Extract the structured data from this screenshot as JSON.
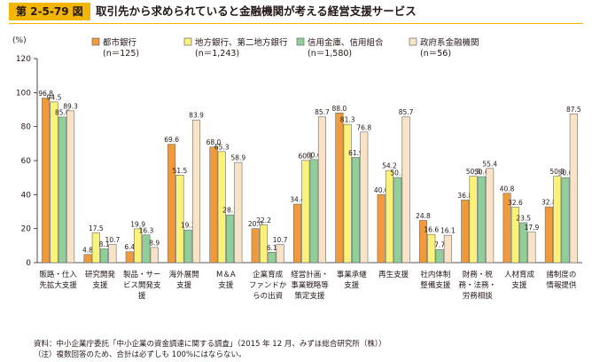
{
  "figure_label": "第 2-5-79 図",
  "figure_title": "取引先から求められていると金融機関が考える経営支援サービス",
  "colors": {
    "accent": "#f2b600",
    "series": [
      "#f09a3c",
      "#fbf27a",
      "#8fcf9a",
      "#f9e3c7"
    ]
  },
  "chart_data": {
    "type": "bar",
    "y_unit_label": "(%)",
    "ylim": [
      0,
      120
    ],
    "yticks": [
      0,
      20,
      40,
      60,
      80,
      100,
      120
    ],
    "grid": false,
    "legend_position": "top",
    "categories": [
      [
        "販路・仕入",
        "先拡大支援"
      ],
      [
        "研究開発",
        "支援"
      ],
      [
        "製品・サー",
        "ビス開発支",
        "援"
      ],
      [
        "海外展開",
        "支援"
      ],
      [
        "M＆A",
        "支援"
      ],
      [
        "企業育成",
        "ファンドか",
        "らの出資"
      ],
      [
        "経営計画・",
        "事業戦略等",
        "策定支援"
      ],
      [
        "事業承継",
        "支援"
      ],
      [
        "再生支援"
      ],
      [
        "社内体制",
        "整備支援"
      ],
      [
        "財務・税",
        "務・法務・",
        "労務相談"
      ],
      [
        "人材育成",
        "支援"
      ],
      [
        "諸制度の",
        "情報提供"
      ]
    ],
    "series": [
      {
        "name": [
          "都市銀行",
          "(n＝125)"
        ],
        "values": [
          96.8,
          4.8,
          6.4,
          69.6,
          68.0,
          20.0,
          34.4,
          88.0,
          40.0,
          24.8,
          36.8,
          40.8,
          32.8
        ],
        "labels": [
          "96.8",
          "4.8",
          "6.4",
          "69.6",
          "68.0",
          "20.0",
          "34.4",
          "88.0",
          "40.0",
          "24.8",
          "36.8",
          "40.8",
          "32.8"
        ]
      },
      {
        "name": [
          "地方銀行、第二地方銀行",
          "(n＝1,243)"
        ],
        "values": [
          94.5,
          17.5,
          19.9,
          51.5,
          65.3,
          22.2,
          60.1,
          81.3,
          54.2,
          16.6,
          50.8,
          32.6,
          50.8
        ],
        "labels": [
          "94.5",
          "17.5",
          "19.9",
          "51.5",
          "65.3",
          "22.2",
          "60.1",
          "81.3",
          "54.2",
          "16.6",
          "50.8",
          "32.6",
          "50.8"
        ]
      },
      {
        "name": [
          "信用金庫、信用組合",
          "(n＝1,580)"
        ],
        "values": [
          85.6,
          8.1,
          16.3,
          19.2,
          28.1,
          6.1,
          60.6,
          61.9,
          50.1,
          7.7,
          50.6,
          23.5,
          50.0
        ],
        "labels": [
          "85.6",
          "8.1",
          "16.3",
          "19.2",
          "28.1",
          "6.1",
          "60.6",
          "61.9",
          "50.1",
          "7.7",
          "50.6",
          "23.5",
          "50.0"
        ]
      },
      {
        "name": [
          "政府系金融機関",
          "(n＝56)"
        ],
        "values": [
          89.3,
          10.7,
          8.9,
          83.9,
          58.9,
          10.7,
          85.7,
          76.8,
          85.7,
          16.1,
          55.4,
          17.9,
          87.5
        ],
        "labels": [
          "89.3",
          "10.7",
          "8.9",
          "83.9",
          "58.9",
          "10.7",
          "85.7",
          "76.8",
          "85.7",
          "16.1",
          "55.4",
          "17.9",
          "87.5"
        ]
      }
    ]
  },
  "footnotes": [
    {
      "label": "資料：",
      "text": "中小企業庁委託「中小企業の資金調達に関する調査」（2015 年 12 月、みずほ総合研究所（株））"
    },
    {
      "label": "（注）",
      "text": "複数回答のため、合計は必ずしも 100%にはならない。"
    }
  ]
}
